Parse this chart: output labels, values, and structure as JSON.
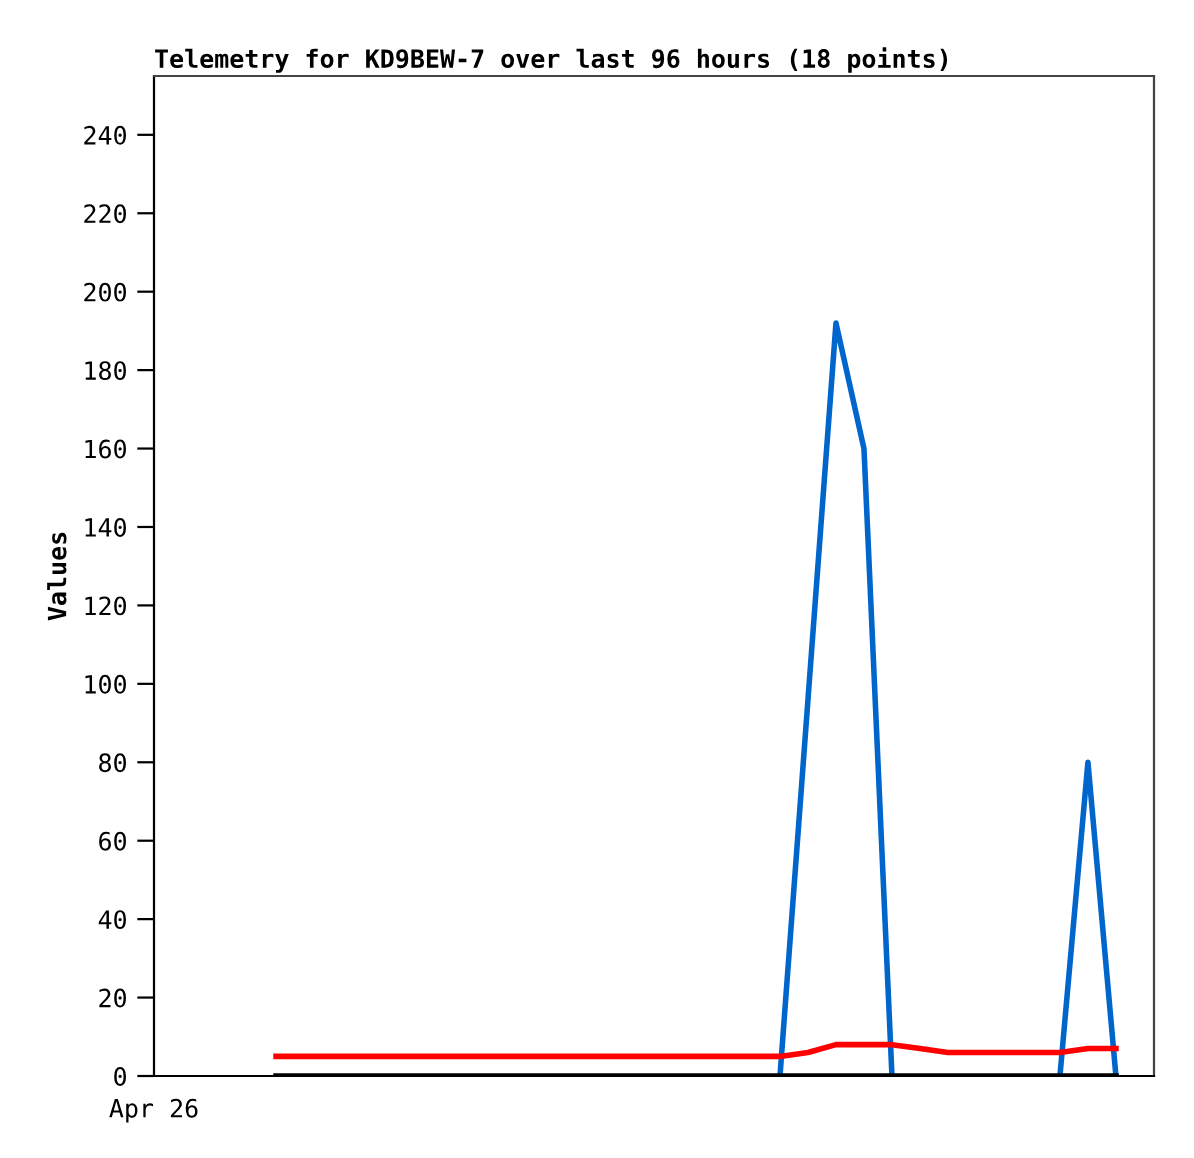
{
  "chart_data": {
    "type": "line",
    "title": "Telemetry for KD9BEW-7 over last 96 hours (18 points)",
    "ylabel": "Values",
    "categories": [
      null,
      null,
      null,
      null,
      null,
      null,
      null,
      null,
      null,
      null,
      null,
      null,
      null,
      null,
      null,
      null,
      null,
      null,
      null,
      null,
      null,
      null,
      null,
      null,
      null,
      null,
      null,
      null,
      null,
      null,
      null
    ],
    "series": [
      {
        "color": "#0066cc",
        "values": [
          null,
          null,
          null,
          null,
          null,
          null,
          null,
          null,
          null,
          null,
          null,
          null,
          null,
          null,
          null,
          null,
          null,
          null,
          0,
          96,
          192,
          160,
          0,
          null,
          null,
          null,
          null,
          null,
          0,
          80,
          0
        ]
      },
      {
        "color": "#ff0000",
        "values": [
          5,
          5,
          5,
          5,
          5,
          5,
          5,
          5,
          5,
          5,
          5,
          5,
          5,
          5,
          5,
          5,
          5,
          5,
          5,
          6,
          8,
          8,
          8,
          7,
          6,
          6,
          6,
          6,
          6,
          7,
          7
        ]
      },
      {
        "color": "#000000",
        "values": [
          0,
          0,
          0,
          0,
          0,
          0,
          0,
          0,
          0,
          0,
          0,
          0,
          0,
          0,
          0,
          0,
          0,
          0,
          0,
          0,
          0,
          0,
          0,
          0,
          0,
          0,
          0,
          0,
          0,
          0,
          0
        ]
      }
    ],
    "annotations": [
      "Apr 26"
    ],
    "ylim": [
      0,
      255
    ],
    "yticks": [
      0,
      20,
      40,
      60,
      80,
      100,
      120,
      140,
      160,
      180,
      200,
      220,
      240
    ],
    "grid": false,
    "legend": false,
    "marker": "none",
    "line_style": "solid"
  }
}
